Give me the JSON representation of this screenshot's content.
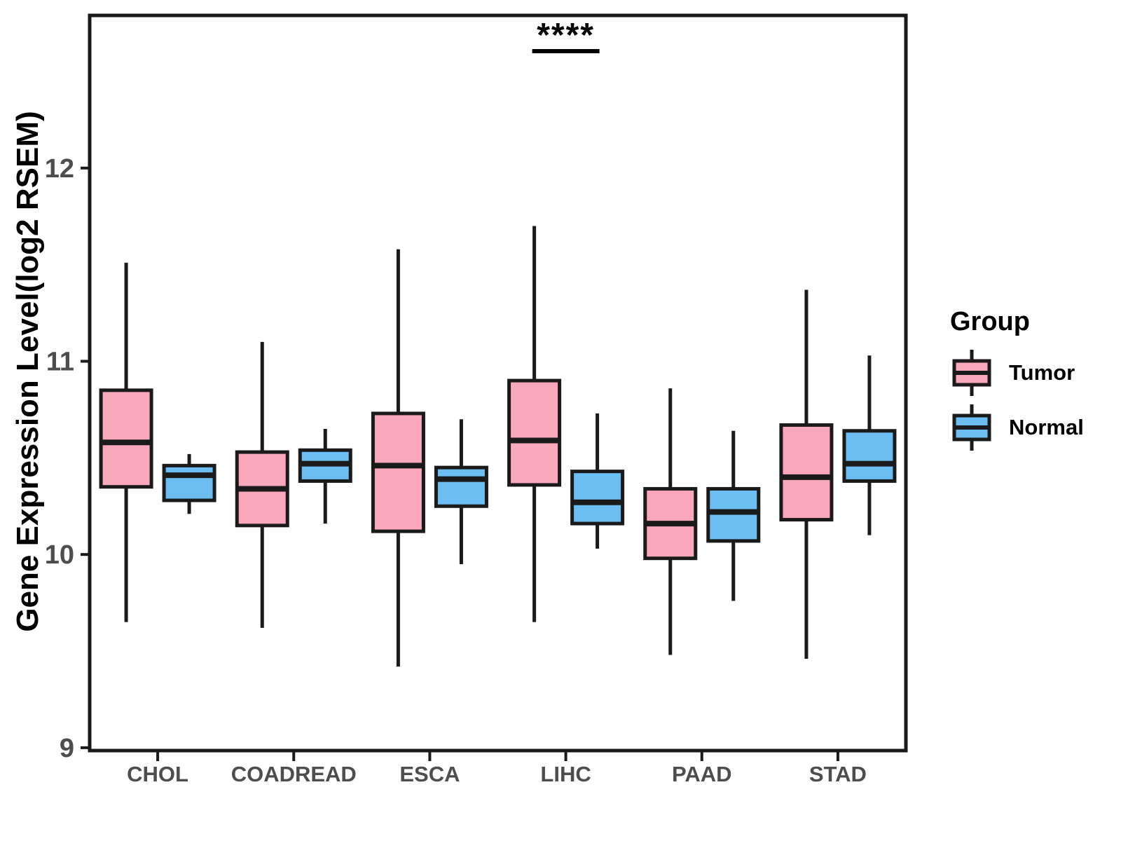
{
  "figure": {
    "background": "#ffffff"
  },
  "legend": {
    "title": "Group"
  },
  "chart_data": {
    "type": "boxplot",
    "title": "",
    "xlabel": "",
    "ylabel": "Gene Expression Level(log2 RSEM)",
    "categories": [
      "CHOL",
      "COADREAD",
      "ESCA",
      "LIHC",
      "PAAD",
      "STAD"
    ],
    "yticks": [
      9,
      10,
      11,
      12
    ],
    "ylim": [
      8.985,
      12.79
    ],
    "grid": false,
    "legend_position": "right",
    "colors": {
      "box_border": "#1A1A1A",
      "tick_label": "#4D4D4D",
      "annotation": "#000000"
    },
    "series": [
      {
        "name": "Tumor",
        "color": "#F9A8BC",
        "boxes": [
          {
            "category": "CHOL",
            "min": 9.65,
            "q1": 10.35,
            "median": 10.58,
            "q3": 10.85,
            "max": 11.51
          },
          {
            "category": "COADREAD",
            "min": 9.62,
            "q1": 10.15,
            "median": 10.34,
            "q3": 10.53,
            "max": 11.1
          },
          {
            "category": "ESCA",
            "min": 9.42,
            "q1": 10.12,
            "median": 10.46,
            "q3": 10.73,
            "max": 11.58
          },
          {
            "category": "LIHC",
            "min": 9.65,
            "q1": 10.36,
            "median": 10.59,
            "q3": 10.9,
            "max": 11.7
          },
          {
            "category": "PAAD",
            "min": 9.48,
            "q1": 9.98,
            "median": 10.16,
            "q3": 10.34,
            "max": 10.86
          },
          {
            "category": "STAD",
            "min": 9.46,
            "q1": 10.18,
            "median": 10.4,
            "q3": 10.67,
            "max": 11.37
          }
        ]
      },
      {
        "name": "Normal",
        "color": "#6CBEF2",
        "boxes": [
          {
            "category": "CHOL",
            "min": 10.21,
            "q1": 10.28,
            "median": 10.41,
            "q3": 10.46,
            "max": 10.52
          },
          {
            "category": "COADREAD",
            "min": 10.16,
            "q1": 10.38,
            "median": 10.47,
            "q3": 10.54,
            "max": 10.65
          },
          {
            "category": "ESCA",
            "min": 9.95,
            "q1": 10.25,
            "median": 10.39,
            "q3": 10.45,
            "max": 10.7
          },
          {
            "category": "LIHC",
            "min": 10.03,
            "q1": 10.16,
            "median": 10.27,
            "q3": 10.43,
            "max": 10.73
          },
          {
            "category": "PAAD",
            "min": 9.76,
            "q1": 10.07,
            "median": 10.22,
            "q3": 10.34,
            "max": 10.64
          },
          {
            "category": "STAD",
            "min": 10.1,
            "q1": 10.38,
            "median": 10.47,
            "q3": 10.64,
            "max": 11.03
          }
        ]
      }
    ],
    "annotations": [
      {
        "text": "****",
        "category": "LIHC",
        "significance_bar": true
      }
    ]
  }
}
